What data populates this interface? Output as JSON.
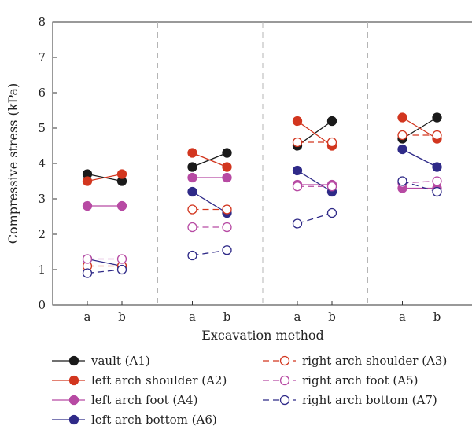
{
  "chart_data": {
    "type": "line",
    "xlabel": "Excavation method",
    "ylabel": "Compressive stress (kPa)",
    "ylim": [
      0,
      8
    ],
    "yticks": [
      "0",
      "1",
      "2",
      "3",
      "4",
      "5",
      "6",
      "7",
      "8"
    ],
    "grid": false,
    "group_separators": "dashed vertical lines",
    "legend_placement": "bottom, two columns",
    "groups": [
      {
        "categories": [
          "a",
          "b"
        ]
      },
      {
        "categories": [
          "a",
          "b"
        ]
      },
      {
        "categories": [
          "a",
          "b"
        ]
      },
      {
        "categories": [
          "a",
          "b"
        ]
      }
    ],
    "series": [
      {
        "name": "vault (A1)",
        "color": "#1a1a1a",
        "marker": "filled",
        "dash": false,
        "values": [
          [
            3.7,
            3.5
          ],
          [
            3.9,
            4.3
          ],
          [
            4.5,
            5.2
          ],
          [
            4.7,
            5.3
          ]
        ]
      },
      {
        "name": "left arch shoulder (A2)",
        "color": "#d2361f",
        "marker": "filled",
        "dash": false,
        "values": [
          [
            3.5,
            3.7
          ],
          [
            4.3,
            3.9
          ],
          [
            5.2,
            4.5
          ],
          [
            5.3,
            4.7
          ]
        ]
      },
      {
        "name": "left arch foot (A4)",
        "color": "#b74aa3",
        "marker": "filled",
        "dash": false,
        "values": [
          [
            2.8,
            2.8
          ],
          [
            3.6,
            3.6
          ],
          [
            3.4,
            3.4
          ],
          [
            3.3,
            3.3
          ]
        ]
      },
      {
        "name": "left arch bottom (A6)",
        "color": "#2f2a88",
        "marker": "filled",
        "dash": false,
        "values": [
          [
            1.3,
            1.1
          ],
          [
            3.2,
            2.6
          ],
          [
            3.8,
            3.2
          ],
          [
            4.4,
            3.9
          ]
        ]
      },
      {
        "name": "right arch shoulder (A3)",
        "color": "#d2361f",
        "marker": "open",
        "dash": true,
        "values": [
          [
            1.1,
            1.1
          ],
          [
            2.7,
            2.7
          ],
          [
            4.6,
            4.6
          ],
          [
            4.8,
            4.8
          ]
        ]
      },
      {
        "name": "right arch foot (A5)",
        "color": "#b74aa3",
        "marker": "open",
        "dash": true,
        "values": [
          [
            1.3,
            1.3
          ],
          [
            2.2,
            2.2
          ],
          [
            3.35,
            3.35
          ],
          [
            3.45,
            3.5
          ]
        ]
      },
      {
        "name": "right arch bottom (A7)",
        "color": "#2f2a88",
        "marker": "open",
        "dash": true,
        "values": [
          [
            0.9,
            1.0
          ],
          [
            1.4,
            1.55
          ],
          [
            2.3,
            2.6
          ],
          [
            3.5,
            3.2
          ]
        ]
      }
    ]
  }
}
